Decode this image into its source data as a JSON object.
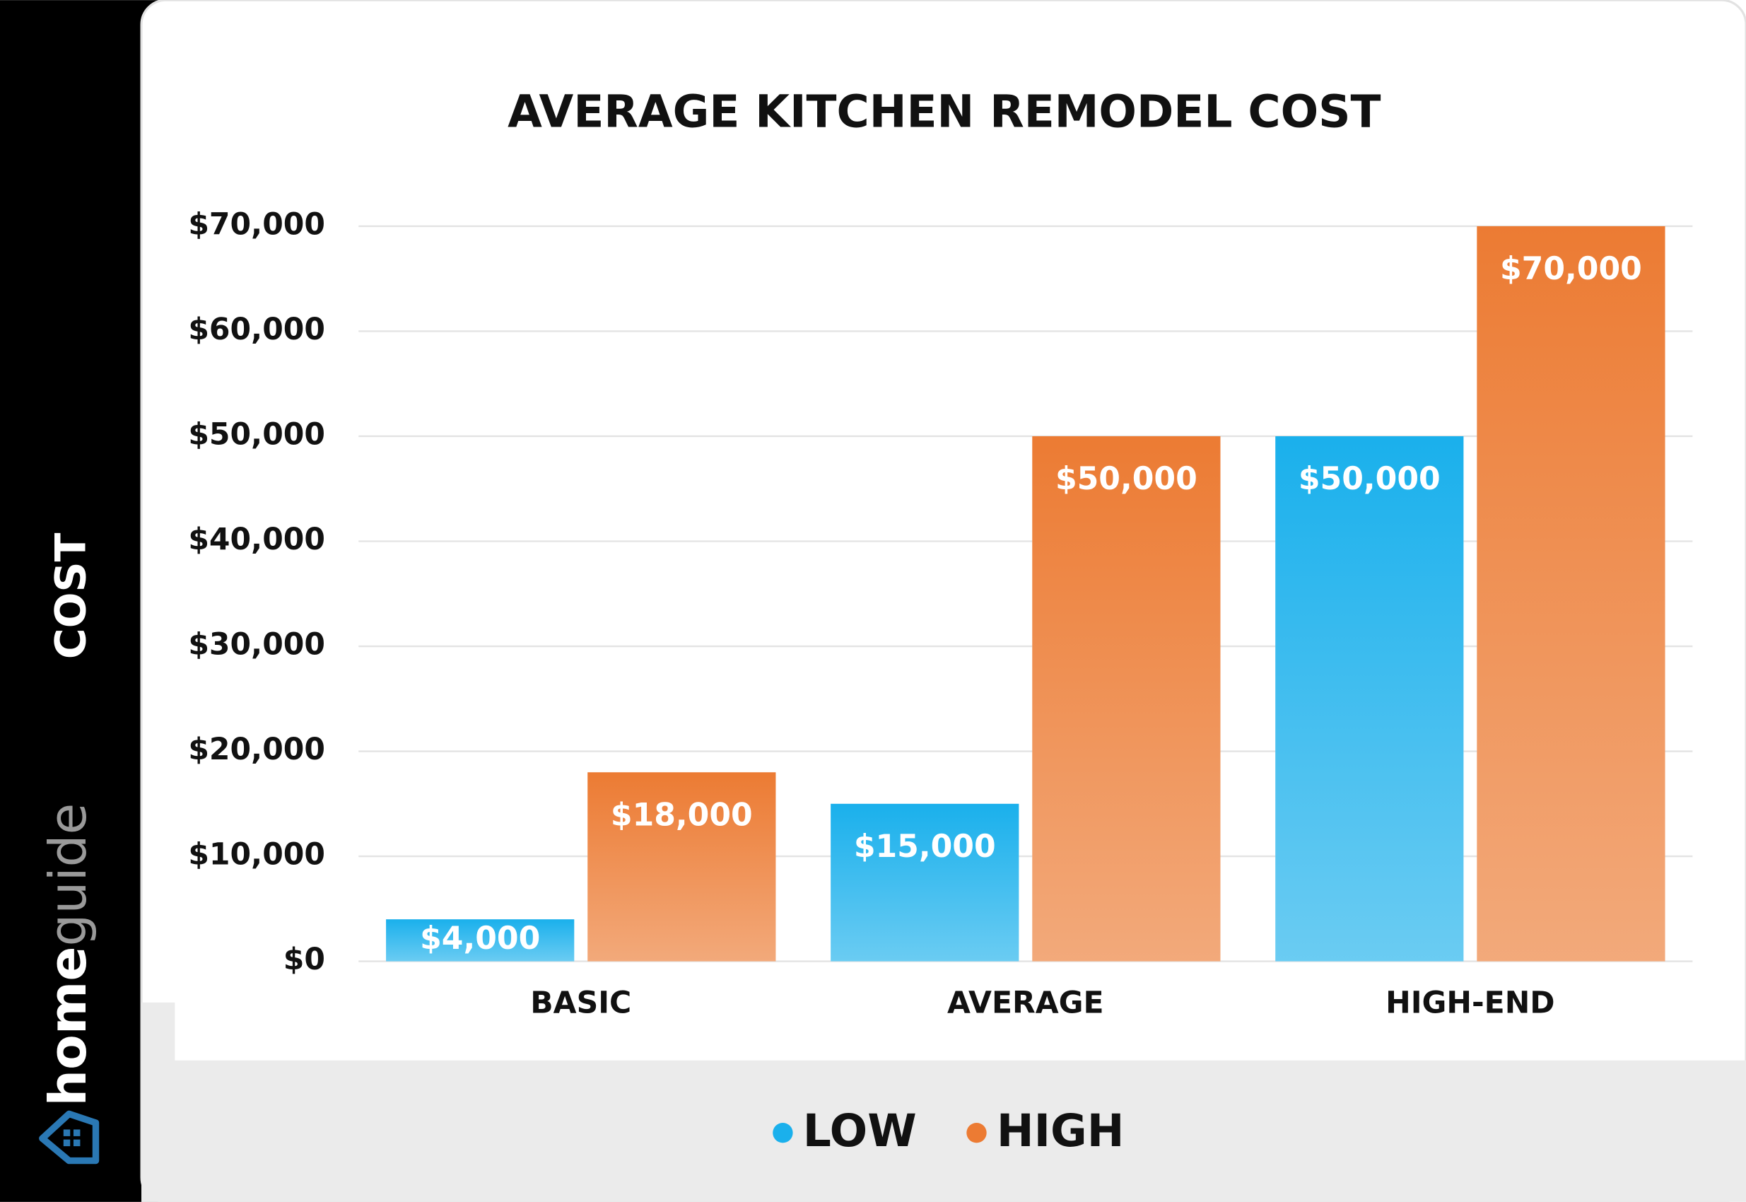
{
  "chart_data": {
    "type": "bar",
    "title": "AVERAGE KITCHEN REMODEL COST",
    "y_label": "COST",
    "categories": [
      "BASIC",
      "AVERAGE",
      "HIGH-END"
    ],
    "series": [
      {
        "name": "LOW",
        "color": "#1ab0ec",
        "values": [
          4000,
          15000,
          50000
        ],
        "value_labels": [
          "$4,000",
          "$15,000",
          "$50,000"
        ]
      },
      {
        "name": "HIGH",
        "color": "#ec7b33",
        "values": [
          18000,
          50000,
          70000
        ],
        "value_labels": [
          "$18,000",
          "$50,000",
          "$70,000"
        ]
      }
    ],
    "ylim": [
      0,
      70000
    ],
    "yticks": [
      {
        "value": 0,
        "label": "$0"
      },
      {
        "value": 10000,
        "label": "$10,000"
      },
      {
        "value": 20000,
        "label": "$20,000"
      },
      {
        "value": 30000,
        "label": "$30,000"
      },
      {
        "value": 40000,
        "label": "$40,000"
      },
      {
        "value": 50000,
        "label": "$50,000"
      },
      {
        "value": 60000,
        "label": "$60,000"
      },
      {
        "value": 70000,
        "label": "$70,000"
      }
    ],
    "grid": true
  },
  "brand": {
    "bold": "home",
    "light": "guide"
  }
}
